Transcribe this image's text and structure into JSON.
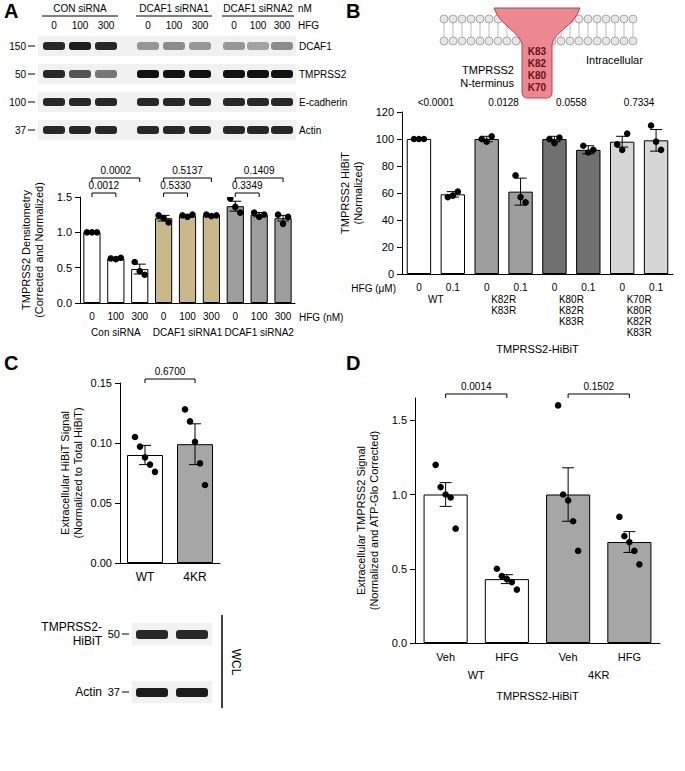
{
  "panel_letters": [
    "A",
    "B",
    "C",
    "D"
  ],
  "chart_data": [
    {
      "type": "bar",
      "ylabel": "TMPRSS2 Densitometry\n(Corrected and Normalized)",
      "categories": [
        "0",
        "100",
        "300",
        "0",
        "100",
        "300",
        "0",
        "100",
        "300"
      ],
      "values": [
        1.0,
        0.63,
        0.48,
        1.2,
        1.23,
        1.24,
        1.37,
        1.25,
        1.2
      ],
      "errors": [
        0.01,
        0.01,
        0.07,
        0.04,
        0.02,
        0.01,
        0.07,
        0.03,
        0.04
      ],
      "points": [
        [
          1.0,
          1.0,
          1.0
        ],
        [
          0.63,
          0.62,
          0.64
        ],
        [
          0.58,
          0.45,
          0.4
        ],
        [
          1.24,
          1.2,
          1.14
        ],
        [
          1.24,
          1.22,
          1.25
        ],
        [
          1.25,
          1.23,
          1.24
        ],
        [
          1.48,
          1.36,
          1.28
        ],
        [
          1.28,
          1.22,
          1.25
        ],
        [
          1.25,
          1.12,
          1.22
        ]
      ],
      "colors": [
        "#ffffff",
        "#ffffff",
        "#ffffff",
        "#c9b98a",
        "#c9b98a",
        "#c9b98a",
        "#9e9e9e",
        "#9e9e9e",
        "#9e9e9e"
      ],
      "groups": [
        {
          "label": "Con siRNA",
          "members": [
            0,
            1,
            2
          ]
        },
        {
          "label": "DCAF1 siRNA1",
          "members": [
            3,
            4,
            5
          ]
        },
        {
          "label": "DCAF1 siRNA2",
          "members": [
            6,
            7,
            8
          ]
        }
      ],
      "tick_row_label": "HFG (nM)",
      "comparisons": [
        {
          "pair": [
            0,
            1
          ],
          "label": "0.0012"
        },
        {
          "pair": [
            0,
            2
          ],
          "label": "0.0002"
        },
        {
          "pair": [
            3,
            4
          ],
          "label": "0.5330"
        },
        {
          "pair": [
            3,
            5
          ],
          "label": "0.5137"
        },
        {
          "pair": [
            6,
            7
          ],
          "label": "0.3349"
        },
        {
          "pair": [
            6,
            8
          ],
          "label": "0.1409"
        }
      ],
      "ylim": [
        0,
        1.5
      ],
      "yticks": [
        {
          "value": 0,
          "label": "0.0"
        },
        0.5,
        {
          "value": 1,
          "label": "1.0"
        },
        1.5
      ],
      "grid": false
    },
    {
      "type": "bar",
      "ylabel": "TMPRSS2 HiBiT\n(Normalized)",
      "categories": [
        "0",
        "0.1",
        "0",
        "0.1",
        "0",
        "0.1",
        "0",
        "0.1"
      ],
      "values": [
        100,
        59,
        100,
        61,
        100,
        92,
        98,
        99
      ],
      "errors": [
        1,
        2,
        2,
        10,
        2,
        3,
        4,
        8
      ],
      "points": [
        [
          100,
          100,
          100
        ],
        [
          57,
          58,
          61
        ],
        [
          100,
          98,
          102
        ],
        [
          73,
          57,
          53
        ],
        [
          100,
          97,
          101
        ],
        [
          95,
          90,
          92
        ],
        [
          96,
          92,
          104
        ],
        [
          110,
          98,
          92
        ]
      ],
      "colors": [
        "#ffffff",
        "#ffffff",
        "#9e9e9e",
        "#9e9e9e",
        "#707070",
        "#707070",
        "#d6d6d6",
        "#d6d6d6"
      ],
      "groups": [
        {
          "label": "WT",
          "members": [
            0,
            1
          ]
        },
        {
          "label": "K82R\nK83R",
          "members": [
            2,
            3
          ]
        },
        {
          "label": "K80R\nK82R\nK83R",
          "members": [
            4,
            5
          ]
        },
        {
          "label": "K70R\nK80R\nK82R\nK83R",
          "members": [
            6,
            7
          ]
        }
      ],
      "tick_row_label": "HFG (μM)",
      "xlabel": "TMPRSS2-HiBiT",
      "comparisons": [
        {
          "pair": [
            0,
            1
          ],
          "label": "<0.0001"
        },
        {
          "pair": [
            2,
            3
          ],
          "label": "0.0128"
        },
        {
          "pair": [
            4,
            5
          ],
          "label": "0.0558"
        },
        {
          "pair": [
            6,
            7
          ],
          "label": "0.7334"
        }
      ],
      "ylim": [
        0,
        120
      ],
      "yticks": [
        0,
        20,
        40,
        60,
        80,
        100,
        120
      ],
      "grid": false
    },
    {
      "type": "bar",
      "ylabel": "Extracellular HiBiT Signal\n(Normalized to Total HiBiT)",
      "categories": [
        "WT",
        "4KR"
      ],
      "values": [
        0.09,
        0.099
      ],
      "errors": [
        0.008,
        0.017
      ],
      "points": [
        [
          0.105,
          0.097,
          0.088,
          0.082,
          0.076
        ],
        [
          0.128,
          0.118,
          0.101,
          0.083,
          0.065
        ]
      ],
      "colors": [
        "#ffffff",
        "#a6a6a6"
      ],
      "comparisons": [
        {
          "pair": [
            0,
            1
          ],
          "label": "0.6700"
        }
      ],
      "ylim": [
        0,
        0.15
      ],
      "yticks": [
        {
          "value": 0,
          "label": "0.00"
        },
        0.05,
        {
          "value": 0.1,
          "label": "0.10"
        },
        0.15
      ],
      "grid": false
    },
    {
      "type": "bar",
      "ylabel": "Extracellular TMPRSS2 Signal\n(Normalized and ATP-Glo Corrected)",
      "categories": [
        "Veh",
        "HFG",
        "Veh",
        "HFG"
      ],
      "values": [
        1.0,
        0.43,
        1.0,
        0.68
      ],
      "errors": [
        0.08,
        0.03,
        0.18,
        0.07
      ],
      "points": [
        [
          1.2,
          1.05,
          1.0,
          0.98,
          0.77
        ],
        [
          0.5,
          0.45,
          0.43,
          0.41,
          0.36
        ],
        [
          1.6,
          1.0,
          0.96,
          0.82,
          0.62
        ],
        [
          0.85,
          0.72,
          0.68,
          0.62,
          0.53
        ]
      ],
      "colors": [
        "#ffffff",
        "#ffffff",
        "#a6a6a6",
        "#a6a6a6"
      ],
      "groups": [
        {
          "label": "WT",
          "members": [
            0,
            1
          ]
        },
        {
          "label": "4KR",
          "members": [
            2,
            3
          ]
        }
      ],
      "xlabel": "TMPRSS2-HiBiT",
      "comparisons": [
        {
          "pair": [
            0,
            1
          ],
          "label": "0.0014"
        },
        {
          "pair": [
            2,
            3
          ],
          "label": "0.1502"
        }
      ],
      "ylim": [
        0,
        1.65
      ],
      "yticks": [
        {
          "value": 0,
          "label": "0.0"
        },
        0.5,
        {
          "value": 1,
          "label": "1.0"
        },
        1.5
      ],
      "grid": false
    }
  ],
  "blots": [
    {
      "groups": [
        {
          "label": "CON siRNA",
          "lanes": [
            0,
            1,
            2
          ]
        },
        {
          "label": "DCAF1 siRNA1",
          "lanes": [
            3,
            4,
            5
          ]
        },
        {
          "label": "DCAF1 siRNA2",
          "lanes": [
            6,
            7,
            8
          ]
        }
      ],
      "unit_label": "nM",
      "lane_row_label": "HFG",
      "lane_labels": [
        "0",
        "100",
        "300",
        "0",
        "100",
        "300",
        "0",
        "100",
        "300"
      ],
      "rows": [
        {
          "name": "DCAF1",
          "marker": "150",
          "intensity": [
            0.9,
            0.95,
            0.9,
            0.4,
            0.45,
            0.4,
            0.4,
            0.35,
            0.45
          ]
        },
        {
          "name": "TMPRSS2",
          "marker": "50",
          "intensity": [
            0.9,
            0.7,
            0.55,
            1.0,
            1.0,
            1.0,
            1.0,
            1.0,
            1.0
          ]
        },
        {
          "name": "E-cadherin",
          "marker": "100",
          "intensity": [
            0.9,
            0.9,
            0.9,
            0.9,
            0.9,
            0.9,
            0.9,
            0.9,
            0.9
          ]
        },
        {
          "name": "Actin",
          "marker": "37",
          "intensity": [
            0.9,
            0.9,
            0.9,
            0.9,
            0.9,
            0.9,
            0.9,
            0.9,
            0.9
          ]
        }
      ]
    },
    {
      "rows": [
        {
          "name": "TMPRSS2-\nHiBiT",
          "marker": "50",
          "intensity": [
            0.9,
            0.9
          ]
        },
        {
          "name": "Actin",
          "marker": "37",
          "intensity": [
            0.95,
            0.95
          ]
        }
      ],
      "side_label": "WCL"
    }
  ],
  "diagram": {
    "lysines": [
      "K83",
      "K82",
      "K80",
      "K70"
    ],
    "inside_label": "Intracellular",
    "terminus_label": "TMPRSS2\nN-terminus"
  }
}
